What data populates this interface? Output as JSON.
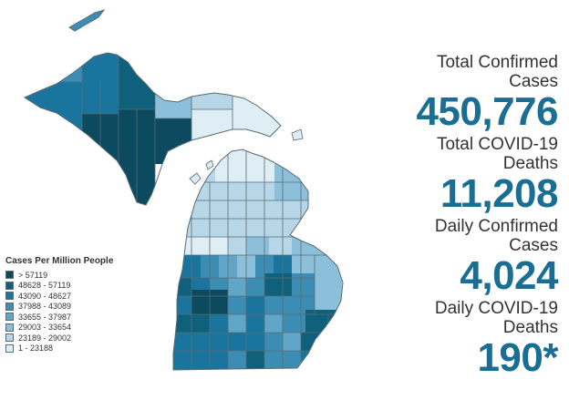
{
  "legend": {
    "title": "Cases Per Million People",
    "items": [
      {
        "label": "> 57119",
        "color": "#0b4a5f"
      },
      {
        "label": "48628 - 57119",
        "color": "#0f607a"
      },
      {
        "label": "43090 - 48627",
        "color": "#1a759e"
      },
      {
        "label": "37988 - 43089",
        "color": "#3c8db4"
      },
      {
        "label": "33655 - 37987",
        "color": "#62a6c7"
      },
      {
        "label": "29003 - 33654",
        "color": "#8cbfd9"
      },
      {
        "label": "23189 - 29002",
        "color": "#b7d6e8"
      },
      {
        "label": "1 - 23188",
        "color": "#dfedf5"
      }
    ]
  },
  "stats": [
    {
      "label_line1": "Total Confirmed",
      "label_line2": "Cases",
      "value": "450,776"
    },
    {
      "label_line1": "Total COVID-19",
      "label_line2": "Deaths",
      "value": "11,208"
    },
    {
      "label_line1": "Daily Confirmed",
      "label_line2": "Cases",
      "value": "4,024"
    },
    {
      "label_line1": "Daily COVID-19",
      "label_line2": "Deaths",
      "value": "190*"
    }
  ],
  "colors": {
    "accent": "#1a6e94",
    "border": "#5a6b73"
  }
}
